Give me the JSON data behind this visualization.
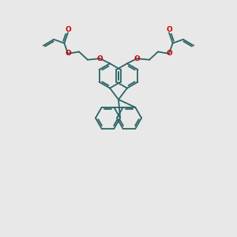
{
  "bg_color": "#e8e8e8",
  "bond_color": "#2d6565",
  "oxygen_color": "#cc0000",
  "lw": 1.3,
  "figsize": [
    3.0,
    3.0
  ],
  "dpi": 100,
  "xlim": [
    0,
    10
  ],
  "ylim": [
    0,
    10
  ]
}
